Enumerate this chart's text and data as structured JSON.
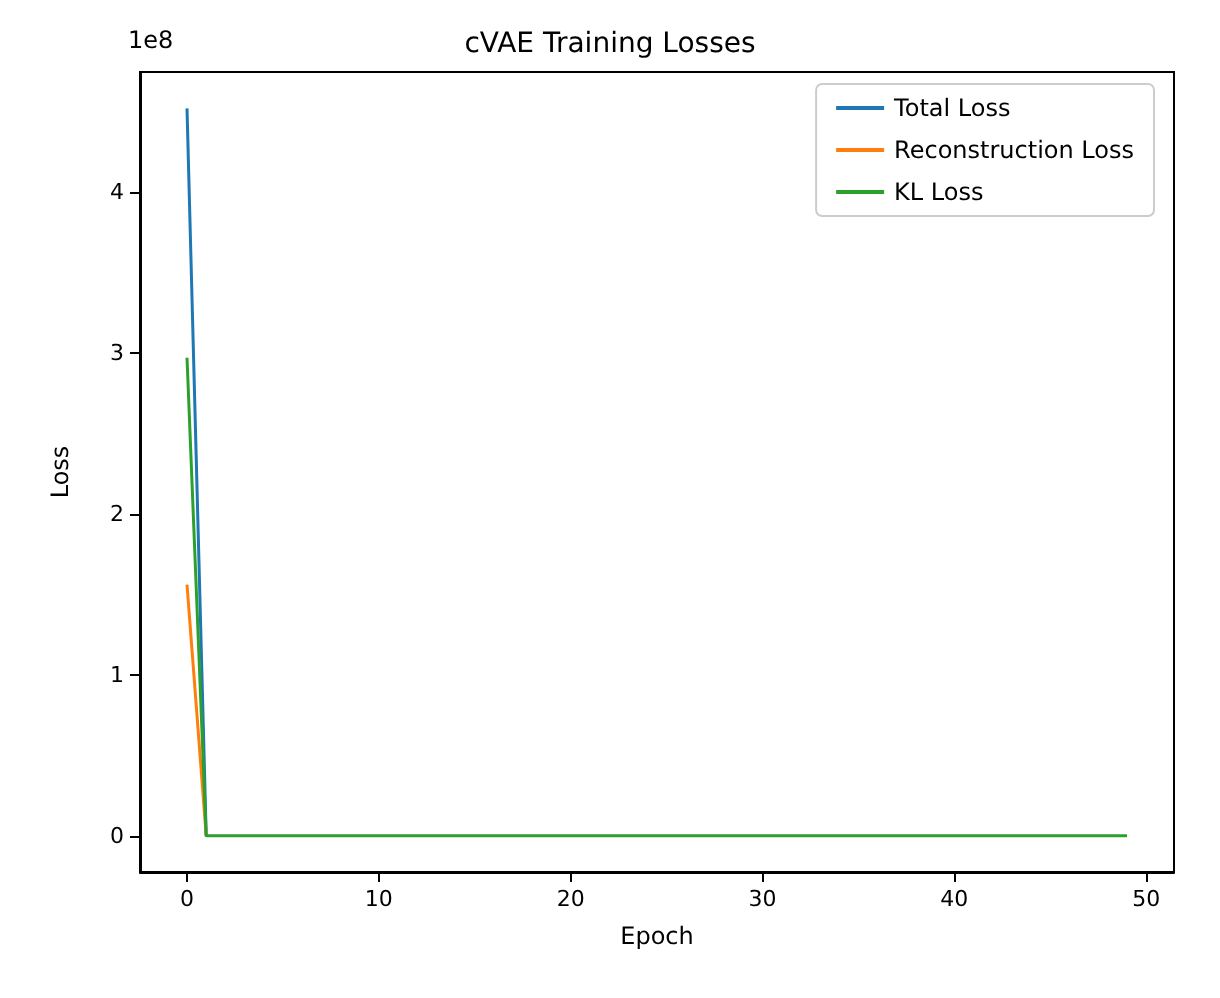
{
  "chart_data": {
    "type": "line",
    "title": "cVAE Training Losses",
    "xlabel": "Epoch",
    "ylabel": "Loss",
    "annotations": [
      "1e8"
    ],
    "x": [
      0,
      1,
      2,
      3,
      4,
      5,
      6,
      7,
      8,
      9,
      10,
      11,
      12,
      13,
      14,
      15,
      16,
      17,
      18,
      19,
      20,
      21,
      22,
      23,
      24,
      25,
      26,
      27,
      28,
      29,
      30,
      31,
      32,
      33,
      34,
      35,
      36,
      37,
      38,
      39,
      40,
      41,
      42,
      43,
      44,
      45,
      46,
      47,
      48,
      49
    ],
    "series": [
      {
        "name": "Total Loss",
        "color": "#1f77b4",
        "values": [
          4.52,
          0,
          null,
          null,
          null,
          null,
          null,
          null,
          null,
          null,
          null,
          null,
          null,
          null,
          null,
          null,
          null,
          null,
          null,
          null,
          null,
          null,
          null,
          null,
          null,
          null,
          null,
          null,
          null,
          null,
          null,
          null,
          null,
          null,
          null,
          null,
          null,
          null,
          null,
          null,
          null,
          null,
          null,
          null,
          null,
          null,
          null,
          null,
          null,
          null
        ]
      },
      {
        "name": "Reconstruction Loss",
        "color": "#ff7f0e",
        "values": [
          1.56,
          0,
          null,
          null,
          null,
          null,
          null,
          null,
          null,
          null,
          null,
          null,
          null,
          null,
          null,
          null,
          null,
          null,
          null,
          null,
          null,
          null,
          null,
          null,
          null,
          null,
          null,
          null,
          null,
          null,
          null,
          null,
          null,
          null,
          null,
          null,
          null,
          null,
          null,
          null,
          null,
          null,
          null,
          null,
          null,
          null,
          null,
          null,
          null,
          null
        ]
      },
      {
        "name": "KL Loss",
        "color": "#2ca02c",
        "values": [
          2.97,
          0,
          0,
          0,
          0,
          0,
          0,
          0,
          0,
          0,
          0,
          0,
          0,
          0,
          0,
          0,
          0,
          0,
          0,
          0,
          0,
          0,
          0,
          0,
          0,
          0,
          0,
          0,
          0,
          0,
          0,
          0,
          0,
          0,
          0,
          0,
          0,
          0,
          0,
          0,
          0,
          0,
          0,
          0,
          0,
          0,
          0,
          0,
          0,
          0
        ]
      }
    ],
    "xlim": [
      -2.45,
      51.45
    ],
    "xticks": [
      0,
      10,
      20,
      30,
      40,
      50
    ],
    "ylim": [
      -0.226,
      4.746
    ],
    "yticks": [
      0,
      1,
      2,
      3,
      4
    ],
    "legend": "top right",
    "grid": false,
    "marker": "none",
    "line_style": "solid"
  }
}
